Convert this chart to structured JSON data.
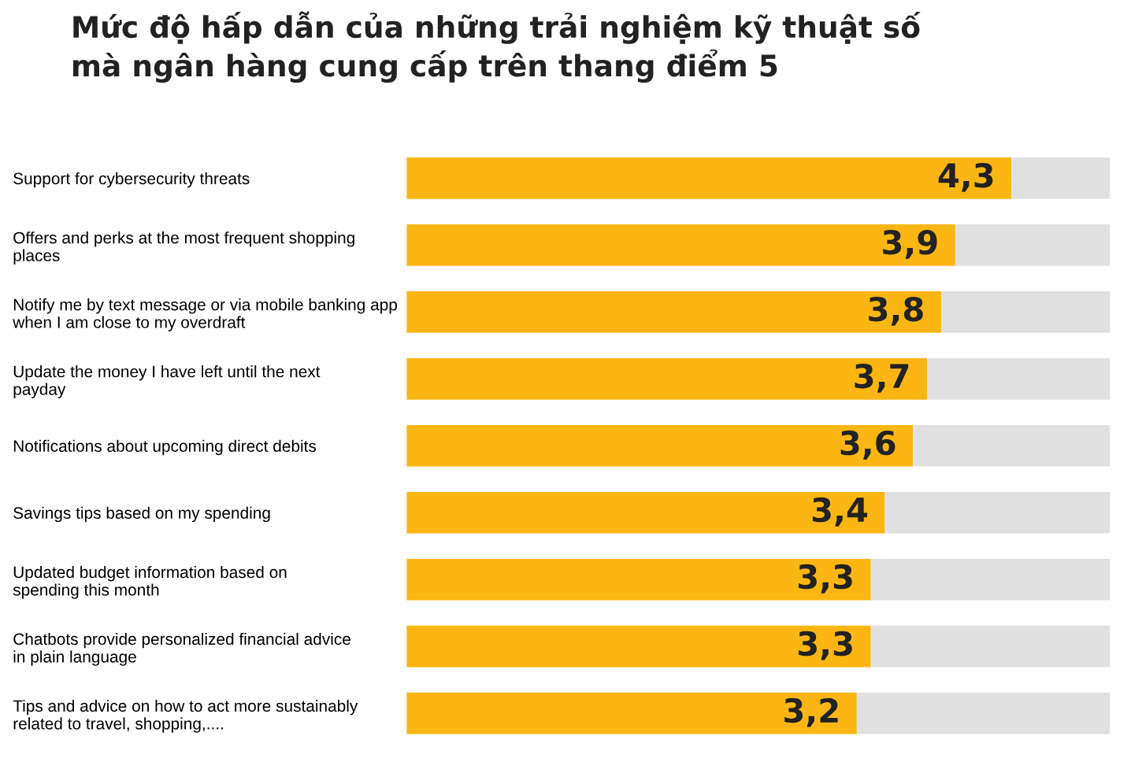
{
  "chart_data": {
    "type": "bar",
    "orientation": "horizontal",
    "stacked": true,
    "title": "Mức độ hấp dẫn của những trải nghiệm kỹ thuật số\nmà ngân hàng cung cấp trên thang điểm 5",
    "categories": [
      "Support for cybersecurity threats",
      "Offers and perks at the most frequent shopping\nplaces",
      "Notify me by text message or via mobile banking app\nwhen I am close to my overdraft",
      "Update the money I have left until the next\npayday",
      "Notifications about upcoming direct debits",
      "Savings tips based on my spending",
      "Updated budget information based on\nspending this month",
      "Chatbots provide personalized financial advice\nin plain language",
      "Tips and advice on how to act more sustainably\nrelated to travel, shopping,...."
    ],
    "series": [
      {
        "color": "#fbb613",
        "values": [
          4.3,
          3.9,
          3.8,
          3.7,
          3.6,
          3.4,
          3.3,
          3.3,
          3.2
        ],
        "value_labels": [
          "4,3",
          "3,9",
          "3,8",
          "3,7",
          "3,6",
          "3,4",
          "3,3",
          "3,3",
          "3,2"
        ]
      },
      {
        "color": "#e0e0e0",
        "values": [
          0.7,
          1.1,
          1.2,
          1.3,
          1.4,
          1.6,
          1.7,
          1.7,
          1.8
        ]
      }
    ],
    "xlim": [
      0,
      5
    ],
    "tick_labels": "y",
    "grid": false,
    "legend": false
  }
}
